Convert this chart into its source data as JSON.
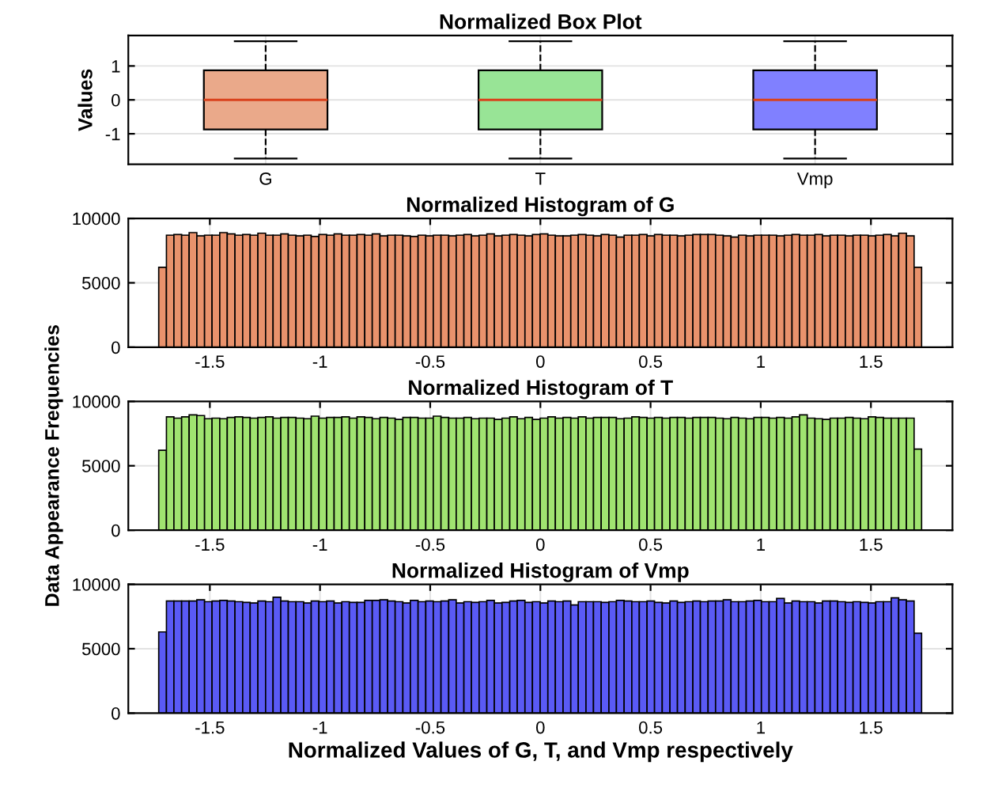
{
  "chart_data": [
    {
      "type": "box",
      "title": "Normalized Box Plot",
      "ylabel": "Values",
      "categories": [
        "G",
        "T",
        "Vmp"
      ],
      "colors": [
        "#eaa98a",
        "#98e496",
        "#8080ff"
      ],
      "boxes": [
        {
          "low": -1.73,
          "q1": -0.87,
          "median": 0,
          "q3": 0.87,
          "high": 1.73
        },
        {
          "low": -1.73,
          "q1": -0.87,
          "median": 0,
          "q3": 0.87,
          "high": 1.73
        },
        {
          "low": -1.73,
          "q1": -0.87,
          "median": 0,
          "q3": 0.87,
          "high": 1.73
        }
      ],
      "ylim": [
        -1.9,
        1.9
      ],
      "yticks": [
        -1,
        0,
        1
      ],
      "grid": true
    },
    {
      "type": "histogram",
      "title": "Normalized Histogram of G",
      "color": "#e9926c",
      "bins": [
        -1.732,
        -1.697,
        -1.663,
        -1.628,
        -1.594,
        -1.559,
        -1.524,
        -1.49,
        -1.455,
        -1.421,
        -1.386,
        -1.351,
        -1.317,
        -1.282,
        -1.247,
        -1.213,
        -1.178,
        -1.144,
        -1.109,
        -1.074,
        -1.04,
        -1.005,
        -0.97,
        -0.936,
        -0.901,
        -0.867,
        -0.832,
        -0.797,
        -0.763,
        -0.728,
        -0.693,
        -0.659,
        -0.624,
        -0.59,
        -0.555,
        -0.52,
        -0.486,
        -0.451,
        -0.416,
        -0.382,
        -0.347,
        -0.313,
        -0.278,
        -0.243,
        -0.209,
        -0.174,
        -0.139,
        -0.105,
        -0.07,
        -0.036,
        -0.001,
        0.034,
        0.068,
        0.103,
        0.138,
        0.172,
        0.207,
        0.241,
        0.276,
        0.311,
        0.345,
        0.38,
        0.415,
        0.449,
        0.484,
        0.518,
        0.553,
        0.588,
        0.622,
        0.657,
        0.692,
        0.726,
        0.761,
        0.795,
        0.83,
        0.865,
        0.899,
        0.934,
        0.969,
        1.003,
        1.038,
        1.072,
        1.107,
        1.142,
        1.176,
        1.211,
        1.246,
        1.28,
        1.315,
        1.349,
        1.384,
        1.419,
        1.453,
        1.488,
        1.522,
        1.557,
        1.592,
        1.626,
        1.661,
        1.696,
        1.73
      ],
      "values": [
        6200,
        8700,
        8750,
        8700,
        8900,
        8650,
        8700,
        8700,
        8900,
        8800,
        8700,
        8750,
        8700,
        8850,
        8700,
        8700,
        8800,
        8700,
        8650,
        8700,
        8600,
        8750,
        8700,
        8800,
        8700,
        8700,
        8750,
        8700,
        8800,
        8650,
        8700,
        8700,
        8650,
        8600,
        8700,
        8650,
        8700,
        8700,
        8650,
        8700,
        8750,
        8650,
        8700,
        8800,
        8650,
        8700,
        8750,
        8700,
        8650,
        8750,
        8800,
        8700,
        8650,
        8650,
        8700,
        8750,
        8700,
        8650,
        8750,
        8700,
        8550,
        8700,
        8700,
        8750,
        8650,
        8750,
        8700,
        8700,
        8650,
        8700,
        8750,
        8750,
        8750,
        8700,
        8650,
        8550,
        8700,
        8650,
        8700,
        8700,
        8700,
        8650,
        8700,
        8750,
        8700,
        8700,
        8750,
        8650,
        8700,
        8700,
        8650,
        8700,
        8700,
        8650,
        8700,
        8750,
        8650,
        8850,
        8650,
        6200
      ],
      "xlim": [
        -1.87,
        1.87
      ],
      "xticks": [
        -1.5,
        -1,
        -0.5,
        0,
        0.5,
        1,
        1.5
      ],
      "ylim": [
        0,
        10000
      ],
      "yticks": [
        0,
        5000,
        10000
      ],
      "grid": true
    },
    {
      "type": "histogram",
      "title": "Normalized Histogram of T",
      "ylabel": "Data Appearance Frequencies",
      "color": "#a0e370",
      "bins": [
        -1.732,
        -1.697,
        -1.663,
        -1.628,
        -1.594,
        -1.559,
        -1.524,
        -1.49,
        -1.455,
        -1.421,
        -1.386,
        -1.351,
        -1.317,
        -1.282,
        -1.247,
        -1.213,
        -1.178,
        -1.144,
        -1.109,
        -1.074,
        -1.04,
        -1.005,
        -0.97,
        -0.936,
        -0.901,
        -0.867,
        -0.832,
        -0.797,
        -0.763,
        -0.728,
        -0.693,
        -0.659,
        -0.624,
        -0.59,
        -0.555,
        -0.52,
        -0.486,
        -0.451,
        -0.416,
        -0.382,
        -0.347,
        -0.313,
        -0.278,
        -0.243,
        -0.209,
        -0.174,
        -0.139,
        -0.105,
        -0.07,
        -0.036,
        -0.001,
        0.034,
        0.068,
        0.103,
        0.138,
        0.172,
        0.207,
        0.241,
        0.276,
        0.311,
        0.345,
        0.38,
        0.415,
        0.449,
        0.484,
        0.518,
        0.553,
        0.588,
        0.622,
        0.657,
        0.692,
        0.726,
        0.761,
        0.795,
        0.83,
        0.865,
        0.899,
        0.934,
        0.969,
        1.003,
        1.038,
        1.072,
        1.107,
        1.142,
        1.176,
        1.211,
        1.246,
        1.28,
        1.315,
        1.349,
        1.384,
        1.419,
        1.453,
        1.488,
        1.522,
        1.557,
        1.592,
        1.626,
        1.661,
        1.696,
        1.73
      ],
      "values": [
        6200,
        8800,
        8700,
        8800,
        8950,
        8900,
        8650,
        8700,
        8650,
        8750,
        8800,
        8750,
        8700,
        8750,
        8800,
        8700,
        8750,
        8750,
        8700,
        8650,
        8850,
        8700,
        8750,
        8750,
        8800,
        8700,
        8800,
        8750,
        8650,
        8750,
        8700,
        8600,
        8750,
        8750,
        8700,
        8700,
        8850,
        8750,
        8700,
        8700,
        8750,
        8650,
        8700,
        8700,
        8600,
        8700,
        8800,
        8650,
        8750,
        8600,
        8700,
        8800,
        8700,
        8750,
        8700,
        8800,
        8700,
        8750,
        8750,
        8750,
        8650,
        8700,
        8800,
        8750,
        8700,
        8750,
        8700,
        8750,
        8750,
        8700,
        8750,
        8750,
        8750,
        8700,
        8650,
        8750,
        8700,
        8650,
        8750,
        8750,
        8700,
        8750,
        8700,
        8800,
        8950,
        8700,
        8650,
        8600,
        8700,
        8700,
        8750,
        8700,
        8650,
        8800,
        8750,
        8700,
        8700,
        8700,
        8700,
        6300
      ],
      "xlim": [
        -1.87,
        1.87
      ],
      "xticks": [
        -1.5,
        -1,
        -0.5,
        0,
        0.5,
        1,
        1.5
      ],
      "ylim": [
        0,
        10000
      ],
      "yticks": [
        0,
        5000,
        10000
      ],
      "grid": true
    },
    {
      "type": "histogram",
      "title": "Normalized Histogram of Vmp",
      "xlabel": "Normalized Values of G, T, and Vmp respectively",
      "color": "#5a5af5",
      "bins": [
        -1.732,
        -1.697,
        -1.663,
        -1.628,
        -1.594,
        -1.559,
        -1.524,
        -1.49,
        -1.455,
        -1.421,
        -1.386,
        -1.351,
        -1.317,
        -1.282,
        -1.247,
        -1.213,
        -1.178,
        -1.144,
        -1.109,
        -1.074,
        -1.04,
        -1.005,
        -0.97,
        -0.936,
        -0.901,
        -0.867,
        -0.832,
        -0.797,
        -0.763,
        -0.728,
        -0.693,
        -0.659,
        -0.624,
        -0.59,
        -0.555,
        -0.52,
        -0.486,
        -0.451,
        -0.416,
        -0.382,
        -0.347,
        -0.313,
        -0.278,
        -0.243,
        -0.209,
        -0.174,
        -0.139,
        -0.105,
        -0.07,
        -0.036,
        -0.001,
        0.034,
        0.068,
        0.103,
        0.138,
        0.172,
        0.207,
        0.241,
        0.276,
        0.311,
        0.345,
        0.38,
        0.415,
        0.449,
        0.484,
        0.518,
        0.553,
        0.588,
        0.622,
        0.657,
        0.692,
        0.726,
        0.761,
        0.795,
        0.83,
        0.865,
        0.899,
        0.934,
        0.969,
        1.003,
        1.038,
        1.072,
        1.107,
        1.142,
        1.176,
        1.211,
        1.246,
        1.28,
        1.315,
        1.349,
        1.384,
        1.419,
        1.453,
        1.488,
        1.522,
        1.557,
        1.592,
        1.626,
        1.661,
        1.696,
        1.73
      ],
      "values": [
        6300,
        8700,
        8700,
        8700,
        8700,
        8800,
        8650,
        8700,
        8750,
        8700,
        8650,
        8600,
        8550,
        8700,
        8650,
        9000,
        8700,
        8650,
        8650,
        8550,
        8700,
        8650,
        8700,
        8550,
        8650,
        8600,
        8600,
        8750,
        8750,
        8800,
        8700,
        8650,
        8550,
        8750,
        8650,
        8700,
        8650,
        8700,
        8800,
        8550,
        8650,
        8600,
        8650,
        8750,
        8550,
        8600,
        8700,
        8750,
        8600,
        8650,
        8550,
        8700,
        8650,
        8700,
        8400,
        8650,
        8650,
        8650,
        8600,
        8650,
        8750,
        8700,
        8650,
        8650,
        8700,
        8600,
        8550,
        8700,
        8600,
        8650,
        8700,
        8650,
        8700,
        8700,
        8800,
        8650,
        8650,
        8700,
        8750,
        8650,
        8650,
        8900,
        8550,
        8700,
        8650,
        8650,
        8550,
        8700,
        8700,
        8650,
        8600,
        8650,
        8600,
        8550,
        8650,
        8650,
        8950,
        8800,
        8700,
        6200
      ],
      "xlim": [
        -1.87,
        1.87
      ],
      "xticks": [
        -1.5,
        -1,
        -0.5,
        0,
        0.5,
        1,
        1.5
      ],
      "ylim": [
        0,
        10000
      ],
      "yticks": [
        0,
        5000,
        10000
      ],
      "grid": true
    }
  ]
}
